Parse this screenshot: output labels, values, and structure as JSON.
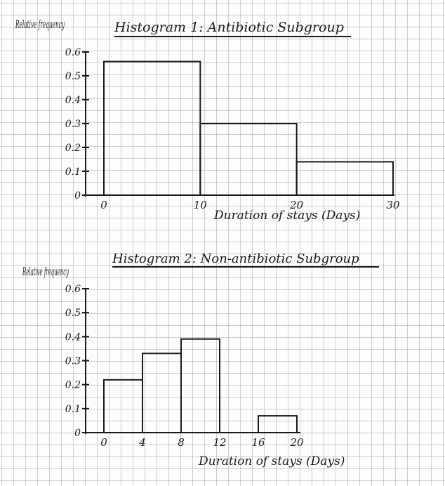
{
  "chart_data": [
    {
      "type": "bar",
      "title": "Histogram 1: Antibiotic Subgroup",
      "ylabel": "Relative frequency",
      "xlabel": "Duration of stays (Days)",
      "bins": [
        [
          0,
          10
        ],
        [
          10,
          20
        ],
        [
          20,
          30
        ]
      ],
      "values": [
        0.56,
        0.3,
        0.14
      ],
      "xticks": [
        "0",
        "10",
        "20",
        "30"
      ],
      "yticks": [
        "0",
        "0.1",
        "0.2",
        "0.3",
        "0.4",
        "0.5",
        "0.6"
      ],
      "xlim": [
        0,
        30
      ],
      "ylim": [
        0,
        0.6
      ],
      "grid": true
    },
    {
      "type": "bar",
      "title": "Histogram 2: Non-antibiotic Subgroup",
      "ylabel": "Relative frequency",
      "xlabel": "Duration of stays (Days)",
      "bins": [
        [
          0,
          4
        ],
        [
          4,
          8
        ],
        [
          8,
          12
        ],
        [
          16,
          20
        ]
      ],
      "values": [
        0.22,
        0.33,
        0.39,
        0.07
      ],
      "xticks": [
        "0",
        "4",
        "8",
        "12",
        "16",
        "20"
      ],
      "yticks": [
        "0",
        "0.1",
        "0.2",
        "0.3",
        "0.4",
        "0.5",
        "0.6"
      ],
      "xlim": [
        0,
        20
      ],
      "ylim": [
        0,
        0.6
      ],
      "grid": true
    }
  ]
}
